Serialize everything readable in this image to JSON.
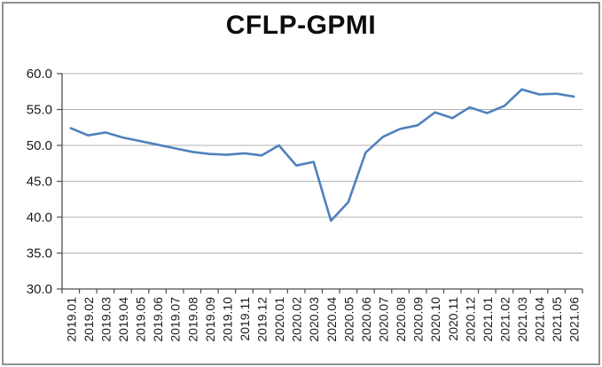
{
  "chart_data": {
    "type": "line",
    "title": "CFLP-GPMI",
    "xlabel": "",
    "ylabel": "",
    "legend": "none",
    "grid": "horizontal",
    "ylim": [
      30,
      60
    ],
    "ytick_step": 5,
    "ytick_labels": [
      "60.0",
      "55.0",
      "50.0",
      "45.0",
      "40.0",
      "35.0",
      "30.0"
    ],
    "categories": [
      "2019.01",
      "2019.02",
      "2019.03",
      "2019.04",
      "2019.05",
      "2019.06",
      "2019.07",
      "2019.08",
      "2019.09",
      "2019.10",
      "2019.11",
      "2019.12",
      "2020.01",
      "2020.02",
      "2020.03",
      "2020.04",
      "2020.05",
      "2020.06",
      "2020.07",
      "2020.08",
      "2020.09",
      "2020.10",
      "2020.11",
      "2020.12",
      "2021.01",
      "2021.02",
      "2021.03",
      "2021.04",
      "2021.05",
      "2021.06"
    ],
    "series": [
      {
        "name": "CFLP-GPMI",
        "values": [
          52.4,
          51.4,
          51.8,
          51.1,
          50.6,
          50.1,
          49.6,
          49.1,
          48.8,
          48.7,
          48.9,
          48.6,
          50.0,
          47.2,
          47.7,
          39.5,
          42.1,
          49.0,
          51.2,
          52.3,
          52.8,
          54.6,
          53.8,
          55.3,
          54.5,
          55.5,
          57.8,
          57.1,
          57.2,
          56.8
        ]
      }
    ],
    "line_color": "#4F81BD",
    "line_width": 2.6,
    "gridline_color": "#b3b3b3",
    "axis_color": "#4d4d4d",
    "text_color": "#1a1a1a",
    "border_color": "#8f8f8f",
    "background_color": "#ffffff"
  }
}
